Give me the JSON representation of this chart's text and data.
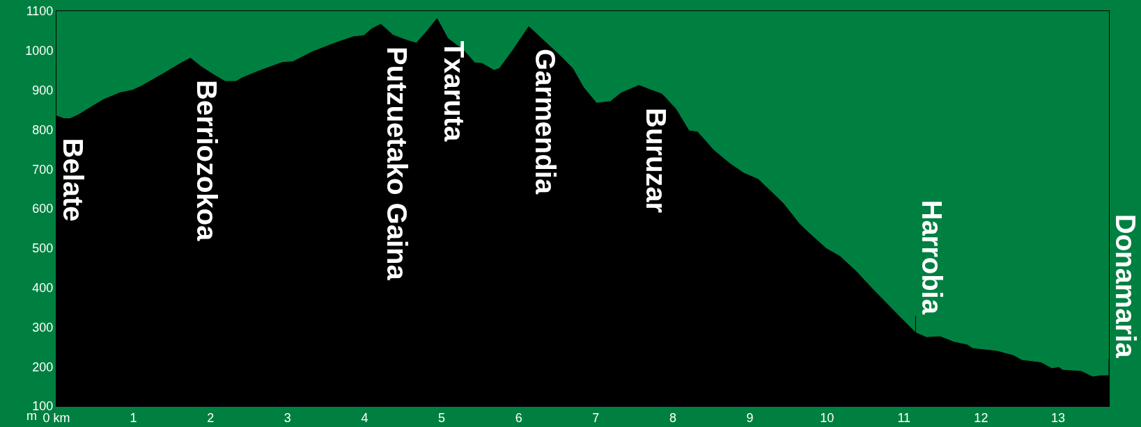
{
  "chart_data": {
    "type": "area",
    "ylabel": "m",
    "x": [
      0,
      0.095,
      0.18,
      0.29,
      0.43,
      0.61,
      0.82,
      0.99,
      1.1,
      1.38,
      1.63,
      1.74,
      1.88,
      2.05,
      2.19,
      2.33,
      2.41,
      2.62,
      2.93,
      3.07,
      3.32,
      3.64,
      3.85,
      3.99,
      4.09,
      4.21,
      4.37,
      4.55,
      4.67,
      4.79,
      4.94,
      5.08,
      5.29,
      5.43,
      5.52,
      5.68,
      5.75,
      5.92,
      6.13,
      6.35,
      6.56,
      6.7,
      6.84,
      7.01,
      7.19,
      7.33,
      7.56,
      7.72,
      7.86,
      8.04,
      8.21,
      8.32,
      8.53,
      8.74,
      8.92,
      9.11,
      9.43,
      9.64,
      9.78,
      9.99,
      10.17,
      10.38,
      10.59,
      10.87,
      11.15,
      11.29,
      11.47,
      11.65,
      11.82,
      11.89,
      12.21,
      12.42,
      12.53,
      12.78,
      12.92,
      13.01,
      13.06,
      13.3,
      13.45,
      13.55,
      13.66
    ],
    "series": [
      {
        "color": "#000000",
        "values": [
          835,
          828,
          828,
          838,
          855,
          876,
          893,
          900,
          910,
          941,
          970,
          981,
          959,
          938,
          922,
          922,
          931,
          948,
          970,
          972,
          997,
          1021,
          1035,
          1038,
          1055,
          1067,
          1039,
          1026,
          1019,
          1045,
          1081,
          1031,
          1000,
          969,
          968,
          950,
          955,
          1000,
          1061,
          1021,
          983,
          955,
          907,
          867,
          871,
          893,
          912,
          900,
          890,
          852,
          797,
          794,
          748,
          714,
          690,
          674,
          614,
          562,
          536,
          499,
          479,
          441,
          397,
          341,
          286,
          274,
          276,
          262,
          255,
          246,
          239,
          228,
          216,
          210,
          195,
          198,
          191,
          188,
          174,
          177,
          177
        ]
      }
    ],
    "xlim": [
      0,
      13.66
    ],
    "ylim": [
      100,
      1100
    ],
    "xticks": [
      {
        "value": 0,
        "label": "0 km"
      },
      1,
      2,
      3,
      4,
      5,
      6,
      7,
      8,
      9,
      10,
      11,
      12,
      13
    ],
    "yticks": [
      100,
      200,
      300,
      400,
      500,
      600,
      700,
      800,
      900,
      1000,
      1100
    ],
    "annotations": [
      {
        "text": "Belate",
        "x": 0,
        "y": 835
      },
      {
        "text": "Berriozokoa",
        "x": 1.74,
        "y": 981
      },
      {
        "text": "Putzuetako Gaina",
        "x": 4.21,
        "y": 1067
      },
      {
        "text": "Txaruta",
        "x": 4.94,
        "y": 1081
      },
      {
        "text": "Garmendia",
        "x": 6.13,
        "y": 1061
      },
      {
        "text": "Buruzar",
        "x": 7.56,
        "y": 912
      },
      {
        "text": "Harrobia",
        "x": 11.15,
        "y": 286
      },
      {
        "text": "Donamaria",
        "x": 13.66,
        "y": 177
      }
    ]
  }
}
